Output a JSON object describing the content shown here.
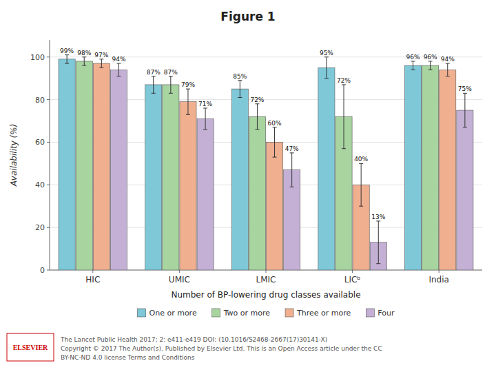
{
  "chart_data": {
    "type": "bar",
    "title": "Figure 1",
    "y_label": "Availability (%)",
    "x_label": "Number of BP-lowering drug classes available",
    "categories": [
      "HIC",
      "UMIC",
      "LMIC",
      "LICᵇ",
      "India"
    ],
    "series": [
      {
        "name": "One or more",
        "color": "#7EC8D8",
        "values": [
          99,
          87,
          85,
          95,
          96
        ],
        "errors": [
          2,
          4,
          4,
          5,
          2
        ],
        "value_labels": [
          "99%",
          "87%",
          "85%",
          "95%",
          "96%"
        ]
      },
      {
        "name": "Two or more",
        "color": "#A8D4A0",
        "values": [
          98,
          87,
          72,
          72,
          96
        ],
        "errors": [
          2,
          4,
          6,
          15,
          2
        ],
        "value_labels": [
          "98%",
          "87%",
          "72%",
          "72%",
          "96%"
        ]
      },
      {
        "name": "Three or more",
        "color": "#F0B090",
        "values": [
          97,
          79,
          60,
          40,
          94
        ],
        "errors": [
          2,
          6,
          7,
          10,
          3
        ],
        "value_labels": [
          "97%",
          "79%",
          "60%",
          "40%",
          "94%"
        ]
      },
      {
        "name": "Four",
        "color": "#C4B0D4",
        "values": [
          94,
          71,
          47,
          13,
          75
        ],
        "errors": [
          3,
          5,
          8,
          10,
          8
        ],
        "value_labels": [
          "94%",
          "71%",
          "47%",
          "13%",
          "75%"
        ]
      }
    ],
    "ylim": [
      0,
      108
    ],
    "yticks": [
      0,
      20,
      40,
      60,
      80,
      100
    ],
    "grid": true,
    "legend": "bottom",
    "data_labels": true,
    "annotations": [
      "ELSEVIER",
      "The Lancet Public Health 2017; 2: e411-e419 DOI: (10.1016/S2468-2667(17)30141-X)",
      "Copyright © 2017 The Author(s). Published by Elsevier Ltd. This is an Open Access article under the CC",
      "BY-NC-ND 4.0 license Terms and Conditions"
    ]
  }
}
